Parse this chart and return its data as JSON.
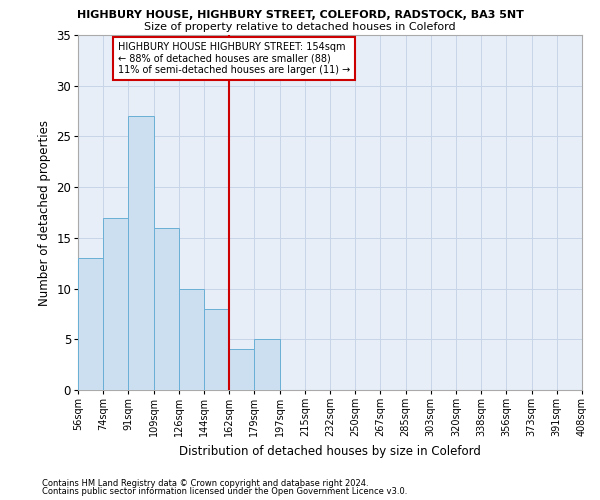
{
  "title1": "HIGHBURY HOUSE, HIGHBURY STREET, COLEFORD, RADSTOCK, BA3 5NT",
  "title2": "Size of property relative to detached houses in Coleford",
  "xlabel": "Distribution of detached houses by size in Coleford",
  "ylabel": "Number of detached properties",
  "footer1": "Contains HM Land Registry data © Crown copyright and database right 2024.",
  "footer2": "Contains public sector information licensed under the Open Government Licence v3.0.",
  "bin_labels": [
    "56sqm",
    "74sqm",
    "91sqm",
    "109sqm",
    "126sqm",
    "144sqm",
    "162sqm",
    "179sqm",
    "197sqm",
    "215sqm",
    "232sqm",
    "250sqm",
    "267sqm",
    "285sqm",
    "303sqm",
    "320sqm",
    "338sqm",
    "356sqm",
    "373sqm",
    "391sqm",
    "408sqm"
  ],
  "values": [
    13,
    17,
    27,
    16,
    10,
    8,
    4,
    5,
    0,
    0,
    0,
    0,
    0,
    0,
    0,
    0,
    0,
    0,
    0,
    0
  ],
  "bar_color": "#ccdff0",
  "bar_edge_color": "#6aafd6",
  "grid_color": "#c8d4e8",
  "bg_color": "#e8eef8",
  "vline_color": "#cc0000",
  "annotation_text": "HIGHBURY HOUSE HIGHBURY STREET: 154sqm\n← 88% of detached houses are smaller (88)\n11% of semi-detached houses are larger (11) →",
  "annotation_box_color": "#ffffff",
  "annotation_box_edge": "#cc0000",
  "ylim": [
    0,
    35
  ],
  "yticks": [
    0,
    5,
    10,
    15,
    20,
    25,
    30,
    35
  ],
  "n_bars": 20,
  "vline_bin_index": 6
}
